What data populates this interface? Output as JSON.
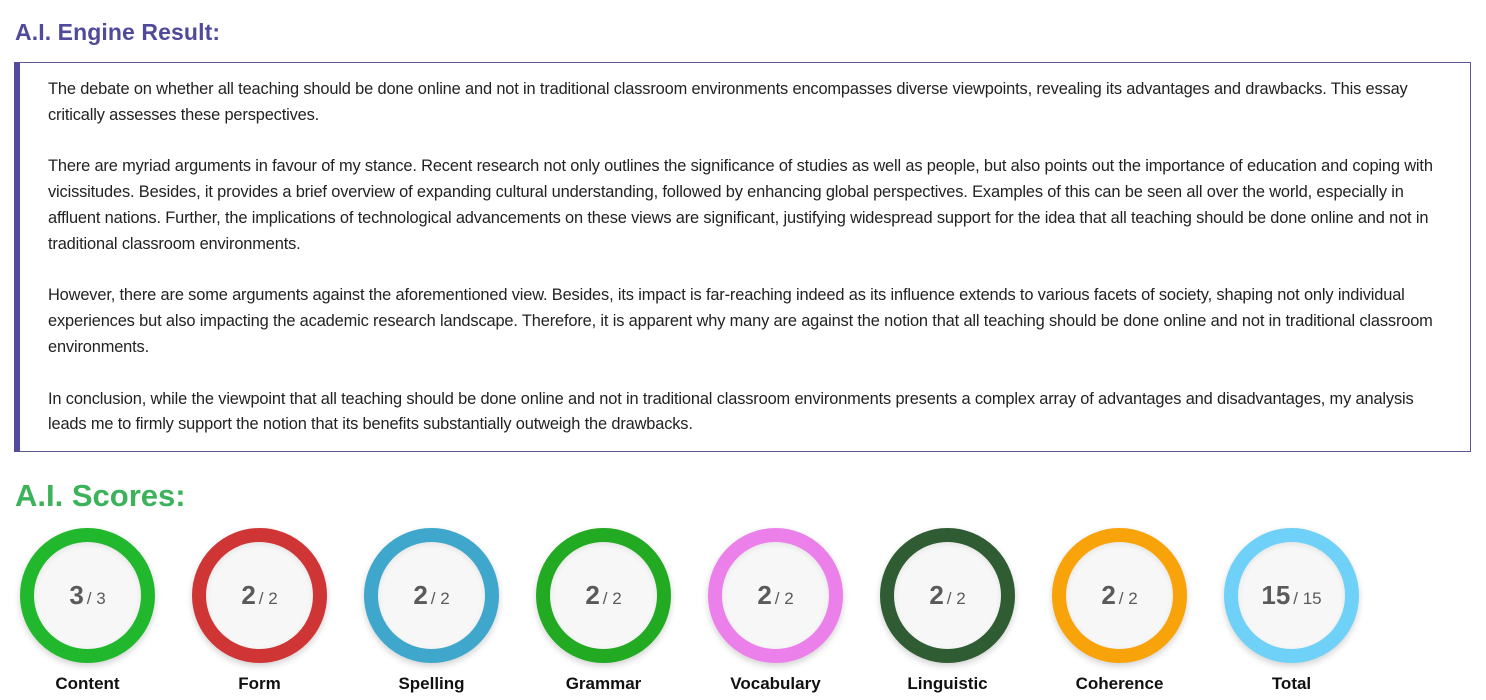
{
  "engine": {
    "title": "A.I. Engine Result:",
    "paragraphs": [
      "The debate on whether all teaching should be done online and not in traditional classroom environments encompasses diverse viewpoints, revealing its advantages and drawbacks. This essay critically assesses these perspectives.",
      "There are myriad arguments in favour of my stance. Recent research not only outlines the significance of studies as well as people, but also points out the importance of education and coping with vicissitudes. Besides, it provides a brief overview of expanding cultural understanding, followed by enhancing global perspectives. Examples of this can be seen all over the world, especially in affluent nations. Further, the implications of technological advancements on these views are significant, justifying widespread support for the idea that all teaching should be done online and not in traditional classroom environments.",
      "However, there are some arguments against the aforementioned view. Besides, its impact is far-reaching indeed as its influence extends to various facets of society, shaping not only individual experiences but also impacting the academic research landscape. Therefore, it is apparent why many are against the notion that all teaching should be done online and not in traditional classroom environments.",
      "In conclusion, while the viewpoint that all teaching should be done online and not in traditional classroom environments presents a complex array of advantages and disadvantages, my analysis leads me to firmly support the notion that its benefits substantially outweigh the drawbacks."
    ],
    "accent_color": "#534b9c"
  },
  "scores": {
    "title": "A.I. Scores:",
    "title_color": "#3cb35a",
    "items": [
      {
        "label": "Content",
        "score": "3",
        "max": "/ 3",
        "color": "#22b82e"
      },
      {
        "label": "Form",
        "score": "2",
        "max": "/ 2",
        "color": "#cf3535"
      },
      {
        "label": "Spelling",
        "score": "2",
        "max": "/ 2",
        "color": "#3fa6cc"
      },
      {
        "label": "Grammar",
        "score": "2",
        "max": "/ 2",
        "color": "#22ab22"
      },
      {
        "label": "Vocabulary",
        "score": "2",
        "max": "/ 2",
        "color": "#ec80ea"
      },
      {
        "label": "Linguistic",
        "score": "2",
        "max": "/ 2",
        "color": "#2f5c32"
      },
      {
        "label": "Coherence",
        "score": "2",
        "max": "/ 2",
        "color": "#f9a30a"
      },
      {
        "label": "Total",
        "score": "15",
        "max": "/ 15",
        "color": "#6fd1f8"
      }
    ]
  }
}
